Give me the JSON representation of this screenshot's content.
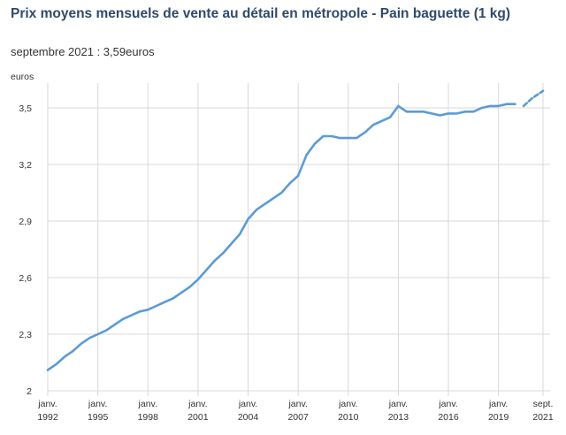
{
  "title": "Prix moyens mensuels de vente au détail en métropole - Pain baguette (1 kg)",
  "subtitle": "septembre 2021 : 3,59euros",
  "chart_data": {
    "type": "line",
    "title": "Prix moyens mensuels de vente au détail en métropole - Pain baguette (1 kg)",
    "ylabel": "euros",
    "ylim": [
      2.0,
      3.6
    ],
    "y_ticks": [
      "2",
      "2,3",
      "2,6",
      "2,9",
      "3,2",
      "3,5"
    ],
    "y_tick_values": [
      2.0,
      2.3,
      2.6,
      2.9,
      3.2,
      3.5
    ],
    "x_ticks": [
      {
        "month": "janv.",
        "year": "1992",
        "date": "1992-01"
      },
      {
        "month": "janv.",
        "year": "1995",
        "date": "1995-01"
      },
      {
        "month": "janv.",
        "year": "1998",
        "date": "1998-01"
      },
      {
        "month": "janv.",
        "year": "2001",
        "date": "2001-01"
      },
      {
        "month": "janv.",
        "year": "2004",
        "date": "2004-01"
      },
      {
        "month": "janv.",
        "year": "2007",
        "date": "2007-01"
      },
      {
        "month": "janv.",
        "year": "2010",
        "date": "2010-01"
      },
      {
        "month": "janv.",
        "year": "2013",
        "date": "2013-01"
      },
      {
        "month": "janv.",
        "year": "2016",
        "date": "2016-01"
      },
      {
        "month": "janv.",
        "year": "2019",
        "date": "2019-01"
      },
      {
        "month": "sept.",
        "year": "2021",
        "date": "2021-09"
      }
    ],
    "grid": true,
    "series": [
      {
        "color": "#5b9bd5",
        "points": [
          [
            "1992-01",
            2.11
          ],
          [
            "1992-07",
            2.14
          ],
          [
            "1993-01",
            2.18
          ],
          [
            "1993-07",
            2.21
          ],
          [
            "1994-01",
            2.25
          ],
          [
            "1994-07",
            2.28
          ],
          [
            "1995-01",
            2.3
          ],
          [
            "1995-07",
            2.32
          ],
          [
            "1996-01",
            2.35
          ],
          [
            "1996-07",
            2.38
          ],
          [
            "1997-01",
            2.4
          ],
          [
            "1997-07",
            2.42
          ],
          [
            "1998-01",
            2.43
          ],
          [
            "1998-07",
            2.45
          ],
          [
            "1999-01",
            2.47
          ],
          [
            "1999-07",
            2.49
          ],
          [
            "2000-01",
            2.52
          ],
          [
            "2000-07",
            2.55
          ],
          [
            "2001-01",
            2.59
          ],
          [
            "2001-07",
            2.64
          ],
          [
            "2002-01",
            2.69
          ],
          [
            "2002-07",
            2.73
          ],
          [
            "2003-01",
            2.78
          ],
          [
            "2003-07",
            2.83
          ],
          [
            "2004-01",
            2.91
          ],
          [
            "2004-07",
            2.96
          ],
          [
            "2005-01",
            2.99
          ],
          [
            "2005-07",
            3.02
          ],
          [
            "2006-01",
            3.05
          ],
          [
            "2006-07",
            3.1
          ],
          [
            "2007-01",
            3.14
          ],
          [
            "2007-07",
            3.25
          ],
          [
            "2008-01",
            3.31
          ],
          [
            "2008-07",
            3.35
          ],
          [
            "2009-01",
            3.35
          ],
          [
            "2009-07",
            3.34
          ],
          [
            "2010-01",
            3.34
          ],
          [
            "2010-07",
            3.34
          ],
          [
            "2011-01",
            3.37
          ],
          [
            "2011-07",
            3.41
          ],
          [
            "2012-01",
            3.43
          ],
          [
            "2012-07",
            3.45
          ],
          [
            "2013-01",
            3.51
          ],
          [
            "2013-07",
            3.48
          ],
          [
            "2014-01",
            3.48
          ],
          [
            "2014-07",
            3.48
          ],
          [
            "2015-01",
            3.47
          ],
          [
            "2015-07",
            3.46
          ],
          [
            "2016-01",
            3.47
          ],
          [
            "2016-07",
            3.47
          ],
          [
            "2017-01",
            3.48
          ],
          [
            "2017-07",
            3.48
          ],
          [
            "2018-01",
            3.5
          ],
          [
            "2018-07",
            3.51
          ],
          [
            "2019-01",
            3.51
          ],
          [
            "2019-07",
            3.52
          ],
          [
            "2020-01",
            3.52
          ]
        ],
        "gap_after": "2020-03",
        "points_after_gap": [
          [
            "2020-07",
            3.51
          ],
          [
            "2021-01",
            3.55
          ],
          [
            "2021-05",
            3.57
          ],
          [
            "2021-09",
            3.59
          ]
        ]
      }
    ]
  }
}
